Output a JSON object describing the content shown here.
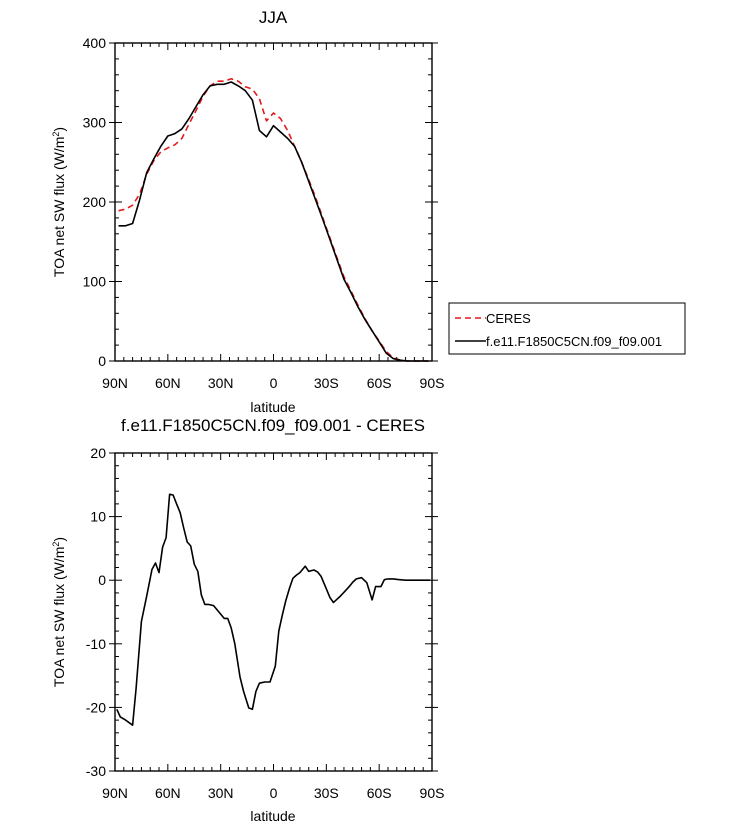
{
  "chart_data": [
    {
      "type": "line",
      "title": "JJA",
      "xlabel": "latitude",
      "ylabel_main": "TOA net SW flux (W/m",
      "ylabel_sup": "2",
      "ylabel_close": ")",
      "xlim": [
        -90,
        90
      ],
      "ylim": [
        0,
        400
      ],
      "xticks": [
        -90,
        -60,
        -30,
        0,
        30,
        60,
        90
      ],
      "xtick_labels": [
        "90N",
        "60N",
        "30N",
        "0",
        "30S",
        "60S",
        "90S"
      ],
      "yticks": [
        0,
        100,
        200,
        300,
        400
      ],
      "ytick_labels": [
        "0",
        "100",
        "200",
        "300",
        "400"
      ],
      "legend": {
        "placement": "right",
        "entries": [
          "CERES",
          "f.e11.F1850C5CN.f09_f09.001"
        ]
      },
      "series": [
        {
          "name": "CERES",
          "color": "#e41a1c",
          "dash": "dashed",
          "x": [
            -88,
            -84,
            -80,
            -76,
            -72,
            -68,
            -64,
            -60,
            -56,
            -52,
            -48,
            -44,
            -40,
            -36,
            -32,
            -28,
            -24,
            -20,
            -16,
            -12,
            -8,
            -4,
            0,
            4,
            8,
            12,
            16,
            20,
            24,
            28,
            32,
            36,
            40,
            44,
            48,
            52,
            56,
            60,
            64,
            68,
            72,
            76,
            80,
            84,
            88
          ],
          "y": [
            189,
            191,
            196,
            210,
            235,
            252,
            263,
            268,
            272,
            280,
            298,
            315,
            333,
            346,
            352,
            352,
            355,
            352,
            345,
            342,
            330,
            302,
            312,
            305,
            290,
            270,
            250,
            228,
            205,
            180,
            155,
            130,
            106,
            88,
            70,
            53,
            38,
            25,
            12,
            4,
            1,
            0,
            0,
            0,
            0
          ]
        },
        {
          "name": "f.e11.F1850C5CN.f09_f09.001",
          "color": "#000000",
          "dash": "solid",
          "x": [
            -88,
            -84,
            -80,
            -76,
            -72,
            -68,
            -64,
            -60,
            -56,
            -52,
            -48,
            -44,
            -40,
            -36,
            -32,
            -28,
            -24,
            -20,
            -16,
            -12,
            -8,
            -4,
            0,
            4,
            8,
            12,
            16,
            20,
            24,
            28,
            32,
            36,
            40,
            44,
            48,
            52,
            56,
            60,
            64,
            68,
            72,
            76,
            80,
            84,
            88
          ],
          "y": [
            170,
            170,
            173,
            203,
            237,
            254,
            270,
            283,
            286,
            292,
            305,
            320,
            335,
            346,
            348,
            348,
            351,
            346,
            340,
            328,
            290,
            282,
            296,
            288,
            280,
            270,
            250,
            226,
            202,
            178,
            153,
            128,
            103,
            86,
            68,
            52,
            38,
            24,
            10,
            3,
            1,
            0,
            0,
            0,
            0
          ]
        }
      ]
    },
    {
      "type": "line",
      "title": "f.e11.F1850C5CN.f09_f09.001 - CERES",
      "xlabel": "latitude",
      "ylabel_main": "TOA net SW flux (W/m",
      "ylabel_sup": "2",
      "ylabel_close": ")",
      "xlim": [
        -90,
        90
      ],
      "ylim": [
        -30,
        20
      ],
      "xticks": [
        -90,
        -60,
        -30,
        0,
        30,
        60,
        90
      ],
      "xtick_labels": [
        "90N",
        "60N",
        "30N",
        "0",
        "30S",
        "60S",
        "90S"
      ],
      "yticks": [
        -30,
        -20,
        -10,
        0,
        10,
        20
      ],
      "ytick_labels": [
        "-30",
        "-20",
        "-10",
        "0",
        "10",
        "20"
      ],
      "series": [
        {
          "color": "#000000",
          "dash": "solid",
          "x": [
            -89,
            -87,
            -84,
            -80,
            -78,
            -75,
            -72,
            -69,
            -67,
            -65,
            -63,
            -61,
            -59,
            -57,
            -55,
            -53,
            -51,
            -49,
            -47,
            -45,
            -43,
            -41,
            -39,
            -37,
            -34,
            -31,
            -28,
            -26,
            -24,
            -22,
            -19,
            -17,
            -14,
            -12,
            -10,
            -8,
            -5,
            -2,
            1,
            3,
            5,
            7,
            9,
            11,
            13,
            15,
            18,
            20,
            23,
            25,
            27,
            29,
            32,
            34,
            36,
            38,
            41,
            43,
            45,
            47,
            50,
            53,
            56,
            58,
            61,
            63,
            65,
            68,
            71,
            75,
            80,
            85,
            89
          ],
          "y": [
            -20.3,
            -21.5,
            -22,
            -22.8,
            -17,
            -6.5,
            -2.5,
            1.7,
            2.7,
            1.2,
            5.2,
            6.7,
            13.5,
            13.4,
            12,
            10.6,
            8.2,
            6,
            5.4,
            2.5,
            1.4,
            -2.3,
            -3.8,
            -3.8,
            -4,
            -5,
            -6,
            -6,
            -7.5,
            -10,
            -15.2,
            -17.5,
            -20.1,
            -20.3,
            -17.5,
            -16.2,
            -16,
            -16,
            -13.5,
            -8,
            -5.5,
            -3.2,
            -1.3,
            0.3,
            0.8,
            1.2,
            2.2,
            1.4,
            1.6,
            1.3,
            0.6,
            -0.7,
            -2.7,
            -3.5,
            -3,
            -2.5,
            -1.6,
            -1,
            -0.3,
            0.2,
            0.4,
            -0.4,
            -3.1,
            -1,
            -1,
            0.1,
            0.2,
            0.2,
            0.1,
            0,
            0,
            0,
            0
          ]
        }
      ]
    }
  ]
}
